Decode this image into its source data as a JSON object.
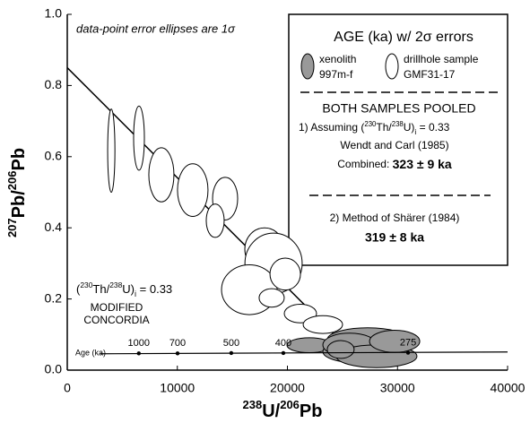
{
  "chart_data": {
    "type": "error-ellipse",
    "x_label": {
      "sup1": "238",
      "t1": "U/",
      "sup2": "206",
      "t2": "Pb"
    },
    "y_label": {
      "sup1": "207",
      "t1": "Pb/",
      "sup2": "206",
      "t2": "Pb"
    },
    "xlim": [
      0,
      40000
    ],
    "ylim": [
      0,
      1
    ],
    "xticks": [
      0,
      10000,
      20000,
      30000,
      40000
    ],
    "yticks": [
      {
        "value": 0,
        "label": "0.0"
      },
      0.2,
      0.4,
      0.6,
      0.8,
      {
        "value": 1,
        "label": "1.0"
      }
    ],
    "note": "data-point error ellipses are 1σ",
    "series": [
      {
        "name": "xenolith",
        "name2": "997m-f",
        "color": "#999999",
        "x": [
          22000,
          27290,
          26480,
          25660,
          28100,
          29740,
          24840
        ],
        "y": [
          0.07,
          0.086,
          0.052,
          0.071,
          0.039,
          0.081,
          0.058
        ],
        "x_err": [
          2040,
          3665,
          3260,
          2440,
          3665,
          2280,
          1220
        ],
        "y_err": [
          0.021,
          0.033,
          0.032,
          0.033,
          0.032,
          0.031,
          0.025
        ]
      },
      {
        "name": "drillhole sample",
        "name2": "GMF31-17",
        "color": "#ffffff",
        "x": [
          4000,
          6517,
          8550,
          11400,
          14340,
          13440,
          17920,
          18740,
          16540,
          19800,
          18570,
          21180,
          23220
        ],
        "y": [
          0.617,
          0.652,
          0.549,
          0.506,
          0.482,
          0.42,
          0.34,
          0.3,
          0.226,
          0.27,
          0.203,
          0.159,
          0.128
        ],
        "x_err": [
          330,
          490,
          1140,
          1385,
          1140,
          815,
          1790,
          2600,
          2525,
          1385,
          1140,
          1465,
          1790
        ],
        "y_err": [
          0.117,
          0.09,
          0.076,
          0.074,
          0.06,
          0.047,
          0.06,
          0.085,
          0.07,
          0.045,
          0.026,
          0.026,
          0.025
        ]
      }
    ],
    "regression_line": {
      "x": [
        0,
        26000
      ],
      "y": [
        0.85,
        0.046
      ]
    },
    "concordia": {
      "x": [
        3000,
        40000
      ],
      "y": [
        0.046,
        0.051
      ],
      "label_prefix": "Age (ka)",
      "ages": [
        1000,
        700,
        500,
        400,
        275
      ],
      "age_x": [
        6500,
        10020,
        14900,
        19630,
        30960
      ],
      "age_y": [
        0.047,
        0.047,
        0.048,
        0.048,
        0.049
      ]
    },
    "concordia_label": {
      "ratio": {
        "open": "(",
        "sup1": "230",
        "t1": "Th/",
        "sup2": "238",
        "t2": "U)",
        "sub": "i",
        "t3": " = 0.33"
      },
      "line1": "MODIFIED",
      "line2": "CONCORDIA"
    },
    "legend_box": {
      "title": "AGE (ka) w/ 2σ errors",
      "pooled": "BOTH SAMPLES POOLED",
      "method1": {
        "prefix": "1)  Assuming ",
        "open": "(",
        "sup1": "230",
        "t1": "Th/",
        "sup2": "238",
        "t2": "U)",
        "sub": "i",
        "t3": " = 0.33"
      },
      "method1_ref": "Wendt and Carl (1985)",
      "combined_label": "Combined: ",
      "combined_value": "323 ± 9 ka",
      "method2": "2) Method of Shärer (1984)",
      "method2_value": "319 ± 8 ka"
    }
  }
}
